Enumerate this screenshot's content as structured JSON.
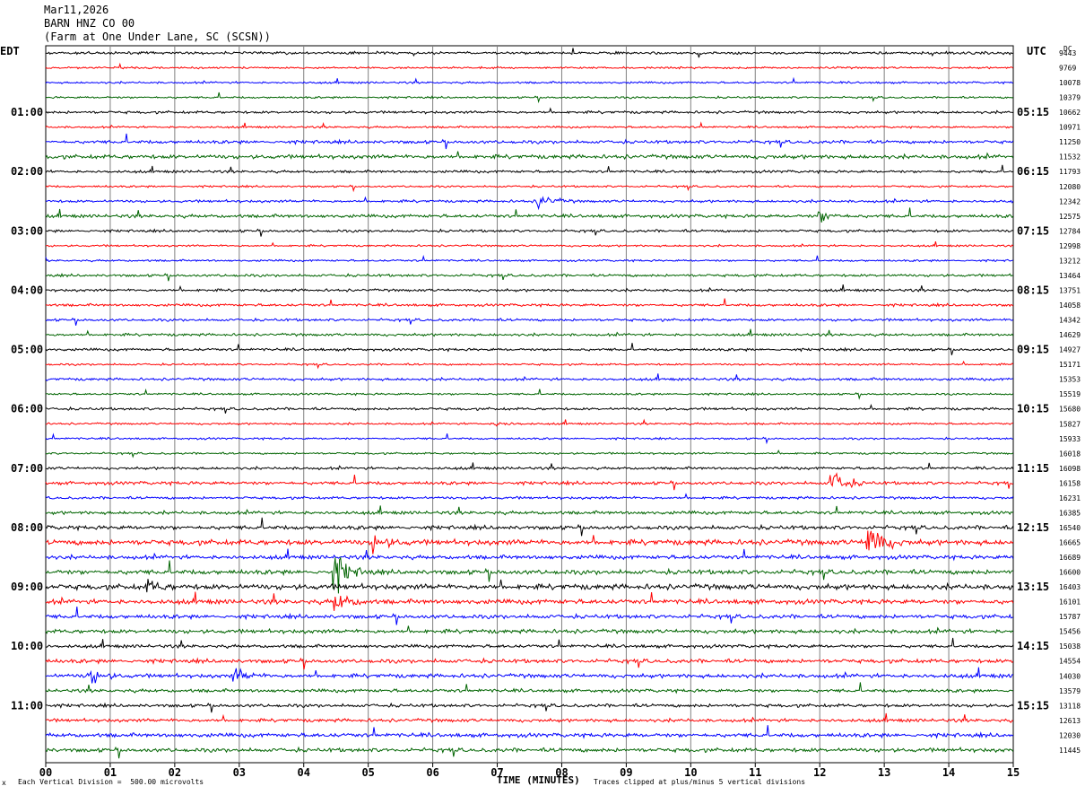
{
  "header": {
    "date": "Mar11,2026",
    "station": "BARN HNZ CO 00",
    "location": "(Farm at One Under Lane, SC (SCSN))"
  },
  "left_tz": "EDT",
  "right_tz": "UTC",
  "dc_label": "DC",
  "footer": {
    "scale": "Each Vertical Division =  500.00 microvolts",
    "clip": "Traces clipped at plus/minus 5 vertical divisions",
    "corner_mark": "x"
  },
  "colors": {
    "black": "#000000",
    "red": "#ff0000",
    "blue": "#0000ff",
    "green": "#006400",
    "grid": "#808080"
  },
  "chart_data": {
    "type": "line",
    "title": "BARN HNZ CO 00",
    "xlabel": "TIME (MINUTES)",
    "ylabel": "",
    "xlim": [
      0,
      15
    ],
    "x_ticks": [
      "00",
      "01",
      "02",
      "03",
      "04",
      "05",
      "06",
      "07",
      "08",
      "09",
      "10",
      "11",
      "12",
      "13",
      "14",
      "15"
    ],
    "trace_minutes": 15,
    "trace_color_cycle": [
      "black",
      "red",
      "blue",
      "green"
    ],
    "left_hour_labels": [
      "01:00",
      "02:00",
      "03:00",
      "04:00",
      "05:00",
      "06:00",
      "07:00",
      "08:00",
      "09:00",
      "10:00",
      "11:00"
    ],
    "right_hour_labels": [
      "05:15",
      "06:15",
      "07:15",
      "08:15",
      "09:15",
      "10:15",
      "11:15",
      "12:15",
      "13:15",
      "14:15",
      "15:15"
    ],
    "dc_offsets": [
      9443,
      9769,
      10078,
      10379,
      10662,
      10971,
      11250,
      11532,
      11793,
      12080,
      12342,
      12575,
      12784,
      12998,
      13212,
      13464,
      13751,
      14058,
      14342,
      14629,
      14927,
      15171,
      15353,
      15519,
      15680,
      15827,
      15933,
      16018,
      16098,
      16158,
      16231,
      16385,
      16540,
      16665,
      16689,
      16600,
      16403,
      16101,
      15787,
      15456,
      15038,
      14554,
      14030,
      13579,
      13118,
      12613,
      12030,
      11445
    ],
    "trace_amplitude": [
      2,
      1.5,
      1.5,
      1.5,
      2,
      1.5,
      2.5,
      3,
      2,
      1.5,
      2,
      2.5,
      2,
      1.5,
      1.5,
      2,
      2,
      2,
      2,
      2,
      2,
      1.5,
      2,
      1.5,
      2,
      1.5,
      1.5,
      1.5,
      2,
      2.5,
      2,
      2.5,
      3,
      4,
      3,
      3.5,
      4,
      3.5,
      3,
      3,
      2.5,
      3,
      3,
      2.5,
      2.5,
      2.5,
      3,
      3
    ],
    "events": [
      {
        "trace": 10,
        "minute": 7.65,
        "amp": 12
      },
      {
        "trace": 11,
        "minute": 12.0,
        "amp": 10
      },
      {
        "trace": 25,
        "minute": 7.0,
        "amp": 4
      },
      {
        "trace": 29,
        "minute": 12.2,
        "amp": 22
      },
      {
        "trace": 33,
        "minute": 5.1,
        "amp": 14
      },
      {
        "trace": 33,
        "minute": 12.75,
        "amp": 40
      },
      {
        "trace": 35,
        "minute": 4.5,
        "amp": 30
      },
      {
        "trace": 36,
        "minute": 1.6,
        "amp": 9
      },
      {
        "trace": 37,
        "minute": 4.5,
        "amp": 16
      },
      {
        "trace": 42,
        "minute": 2.95,
        "amp": 10
      },
      {
        "trace": 42,
        "minute": 0.7,
        "amp": 12
      }
    ]
  }
}
